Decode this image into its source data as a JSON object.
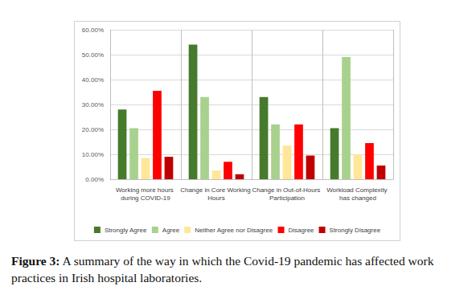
{
  "chart_data": {
    "type": "bar",
    "title": "Figure 3: A summary of the way in which the Covid-19 pandemic has affected work practices in Irish hospital laboratories.",
    "categories": [
      "Working more hours during COVID-19",
      "Change in Core Working Hours",
      "Change in Out-of-Hours Participation",
      "Workload Complexity has changed"
    ],
    "series": [
      {
        "name": "Strongly Agree",
        "color": "#467a2c",
        "values": [
          28,
          54,
          33,
          20.5
        ]
      },
      {
        "name": "Agree",
        "color": "#a9d18e",
        "values": [
          20.5,
          33,
          22,
          49
        ]
      },
      {
        "name": "Neither Agree nor Disagree",
        "color": "#ffe699",
        "values": [
          8.5,
          3.5,
          13.5,
          10
        ]
      },
      {
        "name": "Disagree",
        "color": "#ff0000",
        "values": [
          35.5,
          7,
          22,
          14.5
        ]
      },
      {
        "name": "Strongly Disagree",
        "color": "#c00000",
        "values": [
          9,
          2,
          9.5,
          5.5
        ]
      }
    ],
    "ylim": [
      0,
      60
    ],
    "yticks": [
      {
        "value": 0,
        "label": "0.00%"
      },
      {
        "value": 10,
        "label": "10.00%"
      },
      {
        "value": 20,
        "label": "20.00%"
      },
      {
        "value": 30,
        "label": "30.00%"
      },
      {
        "value": 40,
        "label": "40.00%"
      },
      {
        "value": 50,
        "label": "50.00%"
      },
      {
        "value": 60,
        "label": "60.00%"
      }
    ],
    "grid": true,
    "legend": "bottom"
  }
}
